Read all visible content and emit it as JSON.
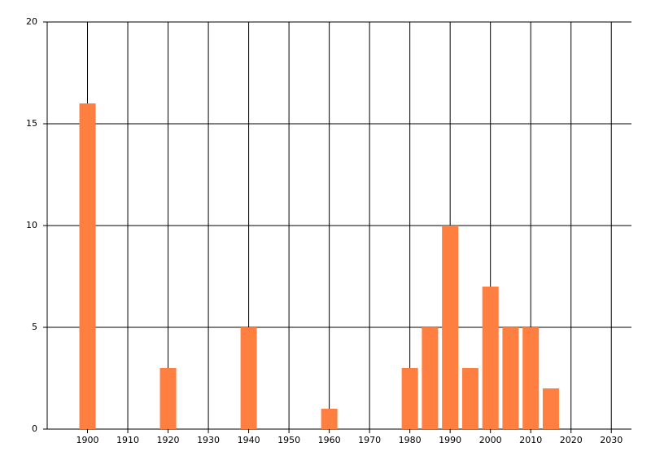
{
  "chart_data": {
    "type": "bar",
    "x": [
      1900,
      1920,
      1940,
      1960,
      1980,
      1985,
      1990,
      1995,
      2000,
      2005,
      2010,
      2015
    ],
    "values": [
      16,
      3,
      5,
      1,
      3,
      5,
      10,
      3,
      7,
      5,
      5,
      2
    ],
    "color": "#ff7f40",
    "xlim": [
      1890,
      2035
    ],
    "xticks": [
      1900,
      1910,
      1920,
      1930,
      1940,
      1950,
      1960,
      1970,
      1980,
      1990,
      2000,
      2010,
      2020,
      2030
    ],
    "ylim": [
      0,
      20
    ],
    "yticks": [
      0,
      5,
      10,
      15,
      20
    ],
    "grid": true
  }
}
